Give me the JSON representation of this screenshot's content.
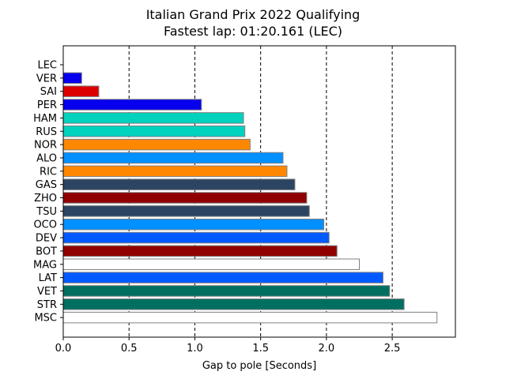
{
  "chart_data": {
    "type": "bar",
    "orientation": "horizontal",
    "title": "Italian Grand Prix 2022 Qualifying",
    "subtitle": "Fastest lap: 01:20.161 (LEC)",
    "xlabel": "Gap to pole [Seconds]",
    "ylabel": "",
    "xlim": [
      0,
      2.98
    ],
    "x_ticks": [
      "0.0",
      "0.5",
      "1.0",
      "1.5",
      "2.0",
      "2.5"
    ],
    "x_tick_values": [
      0,
      0.5,
      1.0,
      1.5,
      2.0,
      2.5
    ],
    "grid": "vertical dashed lines at x ticks",
    "legend": "none",
    "categories": [
      "LEC",
      "VER",
      "SAI",
      "PER",
      "HAM",
      "RUS",
      "NOR",
      "ALO",
      "RIC",
      "GAS",
      "ZHO",
      "TSU",
      "OCO",
      "DEV",
      "BOT",
      "MAG",
      "LAT",
      "VET",
      "STR",
      "MSC"
    ],
    "values": [
      0.0,
      0.14,
      0.27,
      1.05,
      1.37,
      1.38,
      1.42,
      1.67,
      1.7,
      1.76,
      1.85,
      1.87,
      1.98,
      2.02,
      2.08,
      2.25,
      2.43,
      2.48,
      2.59,
      2.84
    ],
    "colors": [
      "#dc0000",
      "#0600ef",
      "#dc0000",
      "#0600ef",
      "#00d2be",
      "#00d2be",
      "#ff8700",
      "#0090ff",
      "#ff8700",
      "#2b4562",
      "#900000",
      "#2b4562",
      "#0090ff",
      "#005aff",
      "#900000",
      "#ffffff",
      "#005aff",
      "#006f62",
      "#006f62",
      "#ffffff"
    ]
  }
}
